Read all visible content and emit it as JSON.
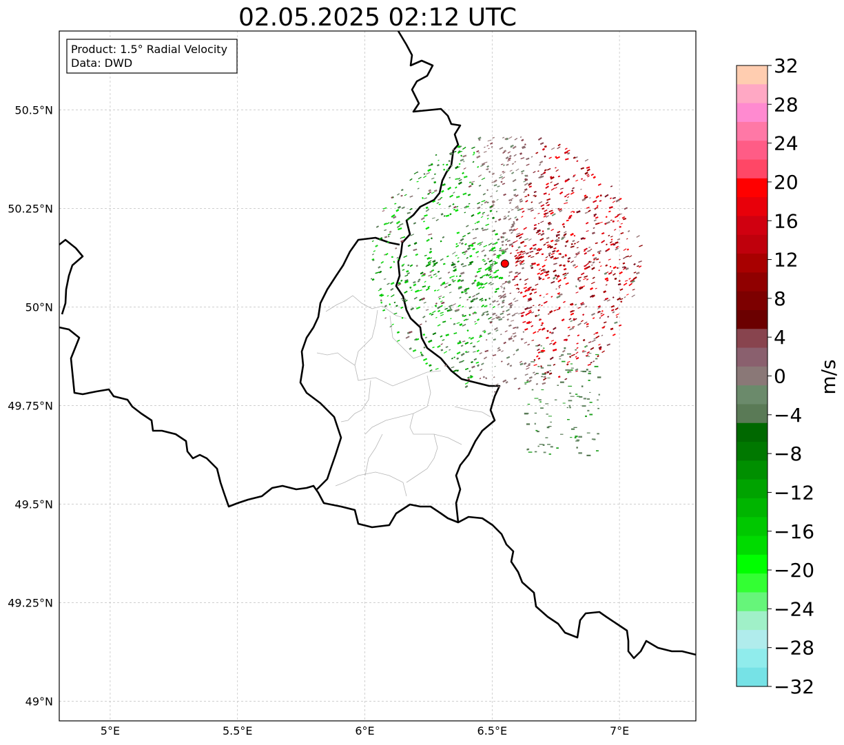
{
  "title": "02.05.2025 02:12 UTC",
  "info_box": {
    "product": "Product: 1.5° Radial Velocity",
    "source": "Data: DWD"
  },
  "map": {
    "lon_range": [
      4.8,
      7.3
    ],
    "lat_range": [
      48.95,
      50.7
    ],
    "lon_ticks": [
      {
        "value": 5.0,
        "label": "5°E"
      },
      {
        "value": 5.5,
        "label": "5.5°E"
      },
      {
        "value": 6.0,
        "label": "6°E"
      },
      {
        "value": 6.5,
        "label": "6.5°E"
      },
      {
        "value": 7.0,
        "label": "7°E"
      }
    ],
    "lat_ticks": [
      {
        "value": 49.0,
        "label": "49°N"
      },
      {
        "value": 49.25,
        "label": "49.25°N"
      },
      {
        "value": 49.5,
        "label": "49.5°N"
      },
      {
        "value": 49.75,
        "label": "49.75°N"
      },
      {
        "value": 50.0,
        "label": "50°N"
      },
      {
        "value": 50.25,
        "label": "50.25°N"
      },
      {
        "value": 50.5,
        "label": "50.5°N"
      }
    ],
    "gridlines": true,
    "radar_site": {
      "lon": 6.55,
      "lat": 50.11
    }
  },
  "colorbar": {
    "unit": "m/s",
    "range": [
      -32,
      32
    ],
    "ticks": [
      "32",
      "28",
      "24",
      "20",
      "16",
      "12",
      "8",
      "4",
      "0",
      "−4",
      "−8",
      "−12",
      "−16",
      "−20",
      "−24",
      "−28",
      "−32"
    ],
    "colors_top_to_bottom": [
      "#ffcdb0",
      "#ffa8c4",
      "#ff8ad0",
      "#ff78a6",
      "#ff5c86",
      "#ff4766",
      "#ff0000",
      "#e8000a",
      "#d00010",
      "#bf000c",
      "#a80000",
      "#900000",
      "#7d0000",
      "#6b0000",
      "#88444e",
      "#8a606e",
      "#8a7877",
      "#6b8a6b",
      "#5a7a56",
      "#006800",
      "#007800",
      "#008f00",
      "#00a300",
      "#00b500",
      "#00c800",
      "#00db00",
      "#00ff00",
      "#33ff33",
      "#66f57a",
      "#a0f0c8",
      "#b0ecec",
      "#90ecec",
      "#76e2e6"
    ]
  }
}
